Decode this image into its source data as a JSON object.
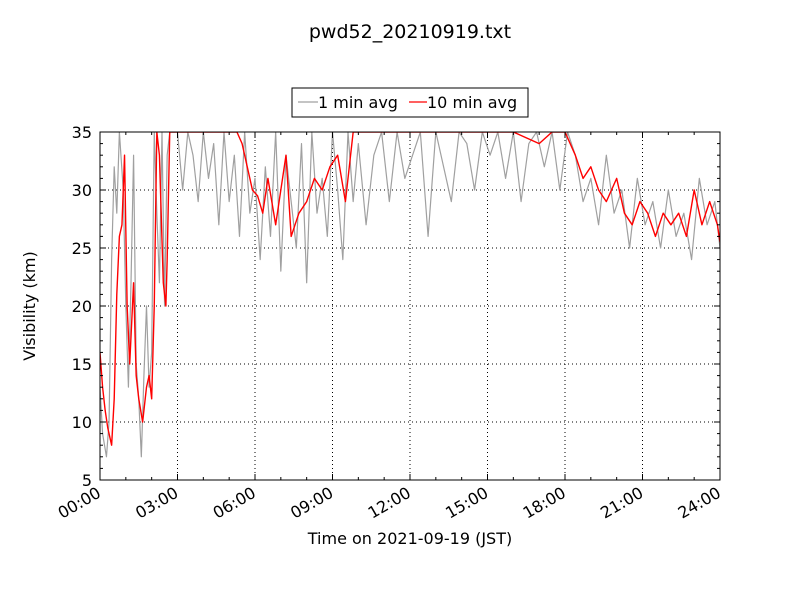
{
  "chart_data": {
    "type": "line",
    "title": "pwd52_20210919.txt",
    "xlabel": "Time on 2021-09-19 (JST)",
    "ylabel": "Visibility (km)",
    "xlim": [
      "00:00",
      "24:00"
    ],
    "ylim": [
      5,
      35
    ],
    "x_unit": "hours",
    "x_ticks": [
      {
        "h": 0,
        "label": "00:00"
      },
      {
        "h": 3,
        "label": "03:00"
      },
      {
        "h": 6,
        "label": "06:00"
      },
      {
        "h": 9,
        "label": "09:00"
      },
      {
        "h": 12,
        "label": "12:00"
      },
      {
        "h": 15,
        "label": "15:00"
      },
      {
        "h": 18,
        "label": "18:00"
      },
      {
        "h": 21,
        "label": "21:00"
      },
      {
        "h": 24,
        "label": "24:00"
      }
    ],
    "y_ticks": [
      5,
      10,
      15,
      20,
      25,
      30,
      35
    ],
    "grid": true,
    "legend_position": "top-center",
    "series": [
      {
        "name": "1 min avg",
        "color": "#a0a0a0",
        "x": [
          0.0,
          0.1,
          0.25,
          0.35,
          0.45,
          0.55,
          0.65,
          0.75,
          0.9,
          1.0,
          1.1,
          1.2,
          1.3,
          1.4,
          1.5,
          1.6,
          1.7,
          1.8,
          1.9,
          2.0,
          2.1,
          2.2,
          2.3,
          2.4,
          2.5,
          2.6,
          2.7,
          2.8,
          2.9,
          3.0,
          3.2,
          3.4,
          3.6,
          3.8,
          4.0,
          4.2,
          4.4,
          4.6,
          4.8,
          5.0,
          5.2,
          5.4,
          5.6,
          5.8,
          6.0,
          6.2,
          6.4,
          6.6,
          6.8,
          7.0,
          7.2,
          7.4,
          7.6,
          7.8,
          8.0,
          8.2,
          8.4,
          8.6,
          8.8,
          9.0,
          9.2,
          9.4,
          9.6,
          9.8,
          10.0,
          10.3,
          10.6,
          10.9,
          11.2,
          11.5,
          11.8,
          12.1,
          12.4,
          12.7,
          13.0,
          13.3,
          13.6,
          13.9,
          14.2,
          14.5,
          14.8,
          15.1,
          15.4,
          15.7,
          16.0,
          16.3,
          16.6,
          16.9,
          17.2,
          17.5,
          17.8,
          18.1,
          18.4,
          18.7,
          19.0,
          19.3,
          19.6,
          19.9,
          20.2,
          20.5,
          20.8,
          21.1,
          21.4,
          21.7,
          22.0,
          22.3,
          22.6,
          22.9,
          23.2,
          23.5,
          23.8,
          24.0
        ],
        "y": [
          13,
          9,
          7,
          10,
          24,
          32,
          28,
          35,
          30,
          20,
          13,
          22,
          33,
          15,
          12,
          7,
          14,
          20,
          13,
          16,
          35,
          28,
          22,
          35,
          20,
          33,
          35,
          35,
          35,
          35,
          30,
          35,
          33,
          29,
          35,
          31,
          34,
          27,
          35,
          29,
          33,
          26,
          35,
          28,
          31,
          24,
          32,
          26,
          35,
          23,
          33,
          29,
          25,
          34,
          22,
          35,
          28,
          31,
          26,
          35,
          30,
          24,
          35,
          29,
          34,
          27,
          33,
          35,
          29,
          35,
          31,
          33,
          35,
          26,
          35,
          32,
          29,
          35,
          34,
          30,
          35,
          33,
          35,
          31,
          35,
          29,
          34,
          35,
          32,
          35,
          30,
          35,
          33,
          29,
          31,
          27,
          33,
          28,
          30,
          25,
          31,
          27,
          29,
          25,
          30,
          26,
          28,
          24,
          31,
          27,
          29,
          25
        ]
      },
      {
        "name": "10 min avg",
        "color": "#ff0000",
        "x": [
          0.0,
          0.1,
          0.2,
          0.3,
          0.45,
          0.55,
          0.65,
          0.75,
          0.85,
          0.95,
          1.05,
          1.15,
          1.3,
          1.4,
          1.5,
          1.65,
          1.8,
          1.9,
          2.0,
          2.1,
          2.2,
          2.3,
          2.45,
          2.55,
          2.6,
          2.7,
          2.8,
          3.0,
          3.5,
          4.0,
          4.5,
          5.0,
          5.3,
          5.5,
          5.7,
          5.9,
          6.1,
          6.3,
          6.5,
          6.8,
          7.0,
          7.2,
          7.4,
          7.7,
          8.0,
          8.3,
          8.6,
          8.9,
          9.2,
          9.5,
          9.8,
          10.0,
          11.0,
          12.0,
          13.0,
          14.0,
          15.0,
          16.0,
          17.0,
          17.5,
          18.0,
          18.4,
          18.7,
          19.0,
          19.3,
          19.6,
          20.0,
          20.3,
          20.6,
          20.9,
          21.2,
          21.5,
          21.8,
          22.1,
          22.4,
          22.7,
          23.0,
          23.3,
          23.6,
          23.9,
          24.0
        ],
        "y": [
          16,
          13,
          11,
          9.5,
          8,
          12,
          21,
          26,
          27,
          33,
          20,
          15,
          22,
          14,
          12,
          10,
          13,
          14,
          12,
          20,
          35,
          33,
          22,
          20,
          24,
          35,
          35,
          35,
          35,
          35,
          35,
          35,
          35,
          34,
          32,
          30,
          29.5,
          28,
          31,
          27,
          30,
          33,
          26,
          28,
          29,
          31,
          30,
          32,
          33,
          29,
          35,
          35,
          35,
          35,
          35,
          35,
          35,
          35,
          34,
          35,
          35,
          33,
          31,
          32,
          30,
          29,
          31,
          28,
          27,
          29,
          28,
          26,
          28,
          27,
          28,
          26,
          30,
          27,
          29,
          27,
          25.5
        ]
      }
    ]
  }
}
